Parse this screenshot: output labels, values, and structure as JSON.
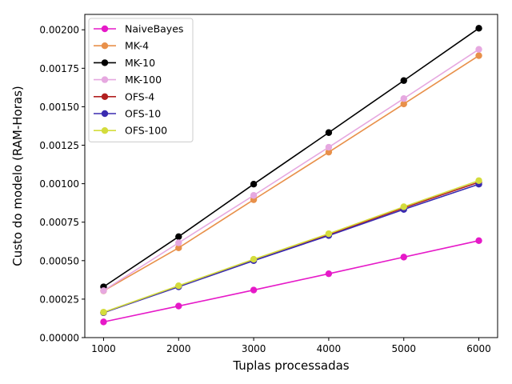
{
  "chart_data": {
    "type": "line",
    "xlabel": "Tuplas processadas",
    "ylabel": "Custo do modelo (RAM-Horas)",
    "x": [
      1000,
      2000,
      3000,
      4000,
      5000,
      6000
    ],
    "xlim": [
      750,
      6250
    ],
    "ylim": [
      0,
      0.0021
    ],
    "x_ticks": [
      1000,
      2000,
      3000,
      4000,
      5000,
      6000
    ],
    "y_ticks": [
      0,
      0.00025,
      0.0005,
      0.00075,
      0.001,
      0.00125,
      0.0015,
      0.00175,
      0.002
    ],
    "y_tick_labels": [
      "0.00000",
      "0.00025",
      "0.00050",
      "0.00075",
      "0.00100",
      "0.00125",
      "0.00150",
      "0.00175",
      "0.00200"
    ],
    "x_tick_labels": [
      "1000",
      "2000",
      "3000",
      "4000",
      "5000",
      "6000"
    ],
    "grid": false,
    "legend_position": "top-left",
    "series": [
      {
        "name": "NaiveBayes",
        "color": "#e619c8",
        "values": [
          0.000102,
          0.000205,
          0.000309,
          0.000415,
          0.000523,
          0.00063
        ]
      },
      {
        "name": "MK-4",
        "color": "#e8904a",
        "values": [
          0.000304,
          0.000583,
          0.000896,
          0.001205,
          0.001518,
          0.001832
        ]
      },
      {
        "name": "MK-10",
        "color": "#000000",
        "values": [
          0.00033,
          0.000656,
          0.000997,
          0.001332,
          0.00167,
          0.00201
        ]
      },
      {
        "name": "MK-100",
        "color": "#e6a8e0",
        "values": [
          0.000305,
          0.000616,
          0.000924,
          0.001237,
          0.001553,
          0.001873
        ]
      },
      {
        "name": "OFS-4",
        "color": "#b22020",
        "values": [
          0.000163,
          0.000333,
          0.000505,
          0.000669,
          0.000843,
          0.00101
        ]
      },
      {
        "name": "OFS-10",
        "color": "#3a2bb0",
        "values": [
          0.000162,
          0.00033,
          0.0005,
          0.000663,
          0.000833,
          0.000997
        ]
      },
      {
        "name": "OFS-100",
        "color": "#d4dc3c",
        "values": [
          0.000165,
          0.000337,
          0.000509,
          0.000675,
          0.00085,
          0.00102
        ]
      }
    ]
  }
}
